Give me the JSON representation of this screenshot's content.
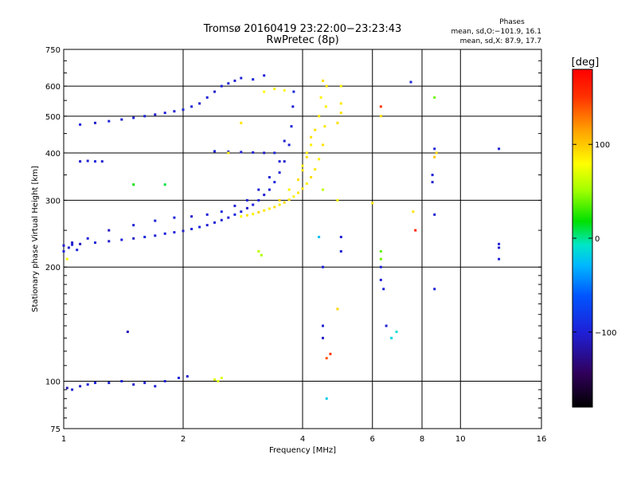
{
  "chart_data": {
    "type": "scatter",
    "title": "Tromsø 20160419 23:22:00−23:23:43",
    "subtitle": "RwPretec (8p)",
    "xlabel": "Frequency [MHz]",
    "ylabel": "Stationary phase Virtual Height [km]",
    "x_scale": "log",
    "y_scale": "log",
    "xlim": [
      1,
      16
    ],
    "ylim": [
      75,
      750
    ],
    "grid": true,
    "x_ticks": [
      1,
      2,
      4,
      6,
      8,
      10,
      16
    ],
    "x_tick_labels": [
      "1",
      "2",
      "4",
      "6",
      "8",
      "10",
      "16"
    ],
    "y_ticks": [
      75,
      100,
      200,
      300,
      400,
      500,
      600,
      750
    ],
    "y_tick_labels": [
      "75",
      "100",
      "200",
      "300",
      "400",
      "500",
      "600",
      "750"
    ],
    "stats": {
      "heading": "Phases",
      "line1": "mean, sd,O:−101.9, 16.1",
      "line2": "mean, sd,X:  87.9, 17.7"
    },
    "colorbar": {
      "label": "[deg]",
      "min": -180,
      "max": 180,
      "ticks": [
        100,
        0,
        -100
      ],
      "tick_labels": [
        "100",
        "0",
        "−100"
      ]
    },
    "series": [
      {
        "name": "O",
        "mean_phase": -101.9,
        "sd_phase": 16.1,
        "points": [
          [
            1.0,
            228,
            -105
          ],
          [
            1.05,
            229,
            -100
          ],
          [
            1.1,
            230,
            -110
          ],
          [
            1.2,
            232,
            -98
          ],
          [
            1.3,
            234,
            -105
          ],
          [
            1.4,
            236,
            -100
          ],
          [
            1.5,
            238,
            -108
          ],
          [
            1.6,
            240,
            -95
          ],
          [
            1.7,
            242,
            -102
          ],
          [
            1.8,
            245,
            -100
          ],
          [
            1.9,
            247,
            -98
          ],
          [
            2.0,
            249,
            -104
          ],
          [
            2.1,
            252,
            -100
          ],
          [
            2.2,
            255,
            -95
          ],
          [
            2.3,
            258,
            -100
          ],
          [
            2.4,
            262,
            -98
          ],
          [
            2.5,
            266,
            -102
          ],
          [
            2.6,
            270,
            -100
          ],
          [
            2.7,
            275,
            -95
          ],
          [
            2.8,
            280,
            -100
          ],
          [
            2.9,
            286,
            -105
          ],
          [
            3.0,
            292,
            -100
          ],
          [
            3.1,
            300,
            -98
          ],
          [
            3.2,
            310,
            -102
          ],
          [
            3.3,
            320,
            -100
          ],
          [
            3.4,
            335,
            -96
          ],
          [
            3.5,
            355,
            -100
          ],
          [
            3.6,
            380,
            -104
          ],
          [
            3.7,
            420,
            -98
          ],
          [
            3.75,
            470,
            -100
          ],
          [
            3.78,
            530,
            -102
          ],
          [
            3.8,
            580,
            -95
          ],
          [
            1.05,
            232,
            -105
          ],
          [
            1.15,
            238,
            -100
          ],
          [
            1.3,
            250,
            -110
          ],
          [
            1.5,
            258,
            -100
          ],
          [
            1.7,
            265,
            -102
          ],
          [
            1.9,
            270,
            -98
          ],
          [
            2.1,
            272,
            -105
          ],
          [
            2.3,
            275,
            -100
          ],
          [
            2.5,
            280,
            -95
          ],
          [
            2.7,
            290,
            -100
          ],
          [
            2.9,
            300,
            -102
          ],
          [
            3.1,
            320,
            -100
          ],
          [
            3.3,
            345,
            -98
          ],
          [
            3.5,
            380,
            -100
          ],
          [
            3.6,
            430,
            -102
          ],
          [
            1.1,
            380,
            -105
          ],
          [
            1.15,
            381,
            -100
          ],
          [
            1.2,
            380,
            -98
          ],
          [
            1.25,
            380,
            -102
          ],
          [
            2.4,
            404,
            -100
          ],
          [
            2.6,
            403,
            -98
          ],
          [
            2.8,
            402,
            -102
          ],
          [
            3.0,
            401,
            -100
          ],
          [
            3.2,
            400,
            -105
          ],
          [
            3.4,
            400,
            -98
          ],
          [
            1.1,
            475,
            -100
          ],
          [
            1.2,
            480,
            -105
          ],
          [
            1.3,
            485,
            -98
          ],
          [
            1.4,
            490,
            -102
          ],
          [
            1.5,
            495,
            -100
          ],
          [
            1.6,
            500,
            -98
          ],
          [
            1.7,
            505,
            -105
          ],
          [
            1.8,
            510,
            -100
          ],
          [
            1.9,
            515,
            -102
          ],
          [
            2.0,
            520,
            -98
          ],
          [
            2.1,
            530,
            -100
          ],
          [
            2.2,
            540,
            -102
          ],
          [
            2.3,
            560,
            -100
          ],
          [
            2.4,
            580,
            -105
          ],
          [
            2.5,
            600,
            -100
          ],
          [
            2.6,
            610,
            -98
          ],
          [
            2.7,
            620,
            -102
          ],
          [
            2.8,
            630,
            -100
          ],
          [
            3.0,
            625,
            -98
          ],
          [
            3.2,
            640,
            -100
          ],
          [
            1.02,
            96,
            -110
          ],
          [
            1.05,
            95,
            -100
          ],
          [
            1.1,
            97,
            -105
          ],
          [
            1.15,
            98,
            -100
          ],
          [
            1.2,
            99,
            -98
          ],
          [
            1.3,
            99,
            -102
          ],
          [
            1.4,
            100,
            -100
          ],
          [
            1.5,
            98,
            -105
          ],
          [
            1.6,
            99,
            -100
          ],
          [
            1.7,
            97,
            -102
          ],
          [
            1.8,
            100,
            -98
          ],
          [
            1.95,
            102,
            -100
          ],
          [
            2.05,
            103,
            -105
          ],
          [
            1.0,
            220,
            -100
          ],
          [
            1.03,
            225,
            -105
          ],
          [
            1.08,
            222,
            -98
          ],
          [
            1.45,
            135,
            -110
          ],
          [
            4.5,
            140,
            -100
          ],
          [
            4.5,
            130,
            -105
          ],
          [
            6.5,
            140,
            -100
          ],
          [
            6.3,
            200,
            -102
          ],
          [
            6.3,
            185,
            -100
          ],
          [
            6.4,
            175,
            -98
          ],
          [
            8.6,
            175,
            -100
          ],
          [
            8.6,
            275,
            -102
          ],
          [
            8.6,
            410,
            -98
          ],
          [
            8.5,
            350,
            -100
          ],
          [
            8.5,
            335,
            -105
          ],
          [
            12.5,
            410,
            -100
          ],
          [
            12.5,
            225,
            -102
          ],
          [
            12.5,
            210,
            -98
          ],
          [
            12.5,
            230,
            -100
          ],
          [
            7.5,
            615,
            -98
          ],
          [
            4.5,
            200,
            -100
          ],
          [
            5.0,
            220,
            -100
          ],
          [
            5.0,
            240,
            -102
          ]
        ]
      },
      {
        "name": "X",
        "mean_phase": 87.9,
        "sd_phase": 17.7,
        "points": [
          [
            2.8,
            272,
            80
          ],
          [
            2.9,
            274,
            90
          ],
          [
            3.0,
            276,
            85
          ],
          [
            3.1,
            279,
            95
          ],
          [
            3.2,
            282,
            88
          ],
          [
            3.3,
            285,
            85
          ],
          [
            3.4,
            288,
            90
          ],
          [
            3.5,
            292,
            85
          ],
          [
            3.6,
            296,
            92
          ],
          [
            3.7,
            301,
            88
          ],
          [
            3.8,
            307,
            85
          ],
          [
            3.9,
            314,
            90
          ],
          [
            4.0,
            322,
            88
          ],
          [
            4.1,
            332,
            85
          ],
          [
            4.2,
            345,
            92
          ],
          [
            4.3,
            362,
            88
          ],
          [
            4.4,
            385,
            85
          ],
          [
            4.5,
            420,
            90
          ],
          [
            4.55,
            470,
            88
          ],
          [
            4.58,
            530,
            85
          ],
          [
            4.6,
            600,
            90
          ],
          [
            3.5,
            300,
            95
          ],
          [
            3.7,
            320,
            85
          ],
          [
            3.9,
            340,
            90
          ],
          [
            4.0,
            360,
            88
          ],
          [
            4.1,
            390,
            92
          ],
          [
            4.2,
            420,
            85
          ],
          [
            4.3,
            460,
            90
          ],
          [
            4.4,
            500,
            88
          ],
          [
            4.45,
            560,
            85
          ],
          [
            4.5,
            620,
            92
          ],
          [
            4.0,
            370,
            85
          ],
          [
            4.1,
            400,
            88
          ],
          [
            4.2,
            440,
            90
          ],
          [
            5.0,
            510,
            90
          ],
          [
            5.0,
            540,
            88
          ],
          [
            4.9,
            480,
            92
          ],
          [
            5.0,
            600,
            85
          ],
          [
            3.2,
            580,
            80
          ],
          [
            3.4,
            590,
            85
          ],
          [
            3.6,
            585,
            82
          ],
          [
            2.4,
            101,
            70
          ],
          [
            2.45,
            100,
            72
          ],
          [
            2.5,
            102,
            68
          ],
          [
            2.8,
            480,
            90
          ],
          [
            2.6,
            400,
            88
          ],
          [
            3.1,
            220,
            60
          ],
          [
            3.15,
            215,
            55
          ],
          [
            4.9,
            155,
            95
          ],
          [
            4.9,
            300,
            80
          ],
          [
            6.0,
            295,
            88
          ],
          [
            6.3,
            500,
            90
          ],
          [
            7.6,
            280,
            90
          ],
          [
            8.7,
            400,
            95
          ],
          [
            8.6,
            390,
            100
          ],
          [
            1.02,
            210,
            82
          ],
          [
            4.6,
            115,
            140
          ],
          [
            4.7,
            118,
            150
          ],
          [
            7.7,
            250,
            160
          ],
          [
            6.3,
            530,
            150
          ],
          [
            1.5,
            330,
            20
          ],
          [
            1.8,
            330,
            10
          ],
          [
            6.3,
            210,
            40
          ],
          [
            6.3,
            220,
            38
          ],
          [
            8.6,
            560,
            40
          ],
          [
            4.6,
            90,
            -20
          ],
          [
            6.7,
            130,
            -15
          ],
          [
            6.9,
            135,
            -10
          ],
          [
            4.4,
            240,
            -25
          ],
          [
            4.5,
            320,
            60
          ]
        ]
      }
    ]
  }
}
